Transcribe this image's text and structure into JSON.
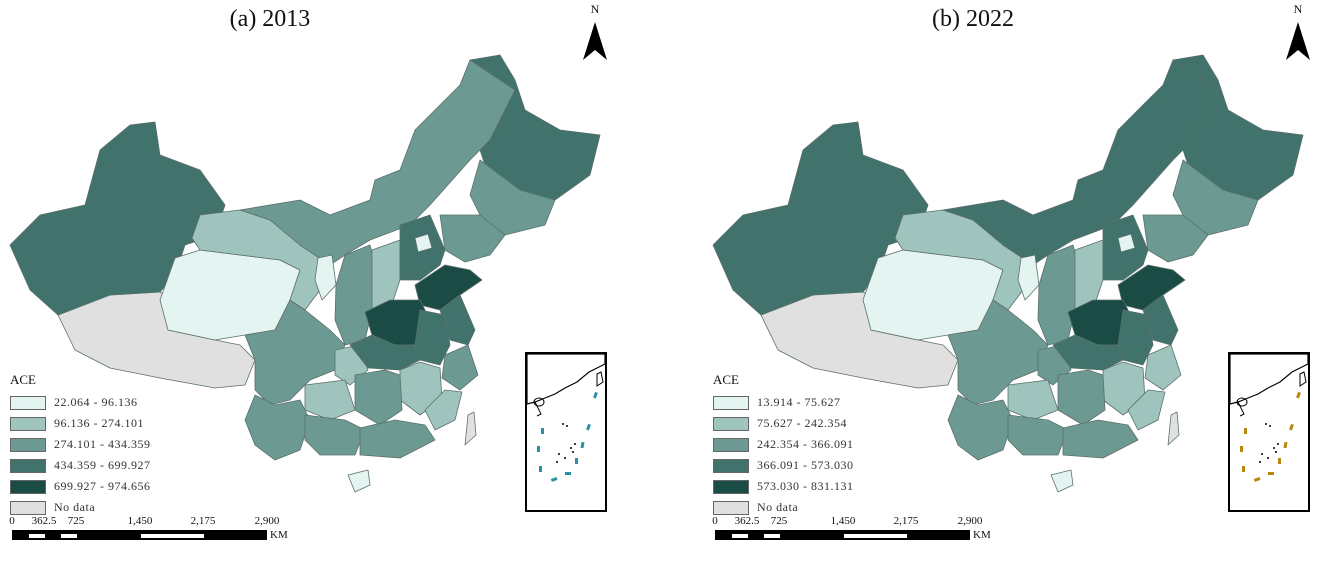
{
  "panels": [
    {
      "title": "(a) 2013",
      "north_label": "N",
      "legend": {
        "title": "ACE",
        "items": [
          {
            "label": "22.064 - 96.136",
            "color": "#e3f4f1"
          },
          {
            "label": "96.136 - 274.101",
            "color": "#9fc4bd"
          },
          {
            "label": "274.101 - 434.359",
            "color": "#6c9a92"
          },
          {
            "label": "434.359 - 699.927",
            "color": "#41736c"
          },
          {
            "label": "699.927 - 974.656",
            "color": "#1b4b45"
          },
          {
            "label": "No data",
            "color": "#e0e0e0"
          }
        ]
      },
      "scale": {
        "ticks": [
          "0",
          "362.5",
          "725",
          "1,450",
          "2,175",
          "2,900"
        ],
        "unit": "KM"
      },
      "island_color": "#2a8fa6"
    },
    {
      "title": "(b) 2022",
      "north_label": "N",
      "legend": {
        "title": "ACE",
        "items": [
          {
            "label": "13.914 - 75.627",
            "color": "#e3f4f1"
          },
          {
            "label": "75.627 - 242.354",
            "color": "#9fc4bd"
          },
          {
            "label": "242.354 - 366.091",
            "color": "#6c9a92"
          },
          {
            "label": "366.091 - 573.030",
            "color": "#41736c"
          },
          {
            "label": "573.030 - 831.131",
            "color": "#1b4b45"
          },
          {
            "label": "No data",
            "color": "#e0e0e0"
          }
        ]
      },
      "scale": {
        "ticks": [
          "0",
          "362.5",
          "725",
          "1,450",
          "2,175",
          "2,900"
        ],
        "unit": "KM"
      },
      "island_color": "#b8860b"
    }
  ]
}
